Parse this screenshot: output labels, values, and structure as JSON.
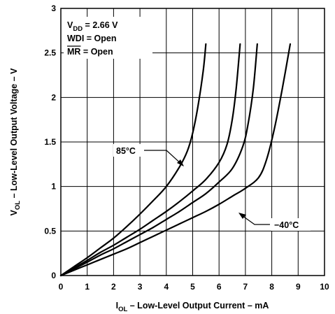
{
  "chart_data": {
    "type": "line",
    "title": "",
    "xlabel": {
      "main": "I",
      "sub": "OL",
      "rest": " – Low-Level Output Current – mA"
    },
    "ylabel": {
      "main": "V",
      "sub": "OL",
      "rest": " – Low-Level Output Voltage – V"
    },
    "xlim": [
      0,
      10
    ],
    "ylim": [
      0,
      3
    ],
    "x_ticks": [
      "0",
      "1",
      "2",
      "3",
      "4",
      "5",
      "6",
      "7",
      "8",
      "9",
      "10"
    ],
    "y_ticks": [
      "0",
      "0.5",
      "1",
      "1.5",
      "2",
      "2.5",
      "3"
    ],
    "grid": true,
    "conditions": {
      "vdd": {
        "main": "V",
        "sub": "DD",
        "rest": " = 2.66 V"
      },
      "wdi": "WDI = Open",
      "mr": {
        "overline": "MR",
        "rest": " = Open"
      }
    },
    "annotations": {
      "hot": {
        "text": "85°C",
        "series": 0
      },
      "cold": {
        "text": "−40°C",
        "series": 3
      }
    },
    "series": [
      {
        "x": [
          0,
          0.5,
          1,
          1.5,
          2,
          2.5,
          3,
          3.5,
          4,
          4.5,
          4.8,
          5.0,
          5.2,
          5.4,
          5.5
        ],
        "y": [
          0,
          0.1,
          0.2,
          0.31,
          0.42,
          0.55,
          0.69,
          0.84,
          1.0,
          1.22,
          1.4,
          1.6,
          1.9,
          2.3,
          2.6
        ]
      },
      {
        "x": [
          0,
          0.5,
          1,
          1.5,
          2,
          2.5,
          3,
          3.5,
          4,
          4.5,
          5,
          5.5,
          6,
          6.3,
          6.5,
          6.65,
          6.8
        ],
        "y": [
          0,
          0.085,
          0.17,
          0.26,
          0.34,
          0.43,
          0.52,
          0.62,
          0.72,
          0.83,
          0.95,
          1.08,
          1.27,
          1.47,
          1.75,
          2.1,
          2.6
        ]
      },
      {
        "x": [
          0,
          0.5,
          1,
          1.5,
          2,
          2.5,
          3,
          3.5,
          4,
          4.5,
          5,
          5.5,
          6,
          6.5,
          6.9,
          7.1,
          7.3,
          7.45
        ],
        "y": [
          0,
          0.075,
          0.15,
          0.23,
          0.3,
          0.38,
          0.46,
          0.54,
          0.63,
          0.72,
          0.82,
          0.92,
          1.05,
          1.2,
          1.45,
          1.7,
          2.1,
          2.6
        ]
      },
      {
        "x": [
          0,
          0.5,
          1,
          1.5,
          2,
          2.5,
          3,
          3.5,
          4,
          4.5,
          5,
          5.5,
          6,
          6.5,
          7,
          7.5,
          7.8,
          8.1,
          8.4,
          8.7
        ],
        "y": [
          0,
          0.06,
          0.12,
          0.18,
          0.24,
          0.3,
          0.37,
          0.44,
          0.51,
          0.58,
          0.65,
          0.72,
          0.8,
          0.89,
          0.98,
          1.1,
          1.3,
          1.65,
          2.1,
          2.6
        ]
      }
    ]
  }
}
